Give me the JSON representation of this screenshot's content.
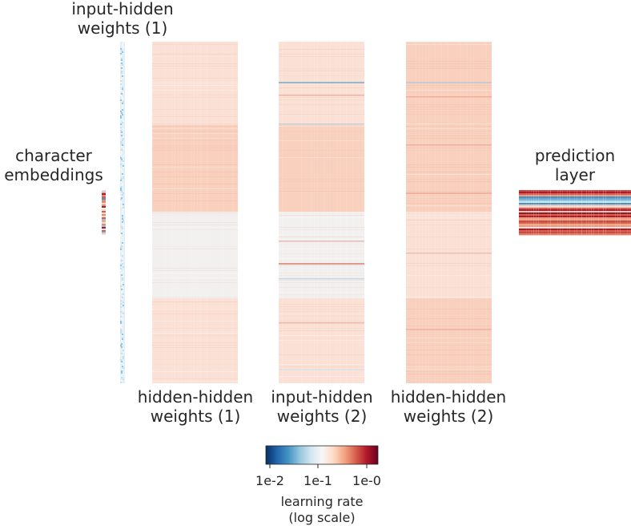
{
  "chart_data": {
    "type": "heatmap",
    "matrices": [
      {
        "id": "input-hidden-1",
        "label_lines": [
          "input-hidden",
          "weights (1)"
        ],
        "label_position": "top",
        "band_shades": [
          "light-blue",
          "light-blue",
          "light-blue"
        ]
      },
      {
        "id": "character-embeddings",
        "label_lines": [
          "character",
          "embeddings"
        ],
        "label_position": "top",
        "band_shades": [
          "mixed-red-blue"
        ]
      },
      {
        "id": "hidden-hidden-1",
        "label_lines": [
          "hidden-hidden",
          "weights (1)"
        ],
        "label_position": "bottom",
        "band_shades": [
          "light-red",
          "medium-red",
          "near-white",
          "light-red"
        ]
      },
      {
        "id": "input-hidden-2",
        "label_lines": [
          "input-hidden",
          "weights (2)"
        ],
        "label_position": "bottom",
        "band_shades": [
          "light-red",
          "medium-red",
          "near-white",
          "light-red"
        ]
      },
      {
        "id": "hidden-hidden-2",
        "label_lines": [
          "hidden-hidden",
          "weights (2)"
        ],
        "label_position": "bottom",
        "band_shades": [
          "medium-red",
          "medium-red",
          "light-red",
          "medium-red"
        ]
      },
      {
        "id": "prediction-layer",
        "label_lines": [
          "prediction",
          "layer"
        ],
        "label_position": "top",
        "band_shades": [
          "mixed-dark-red-blue"
        ]
      }
    ],
    "colorbar": {
      "colormap": "RdBu_r",
      "scale": "log",
      "range": [
        0.01,
        1.0
      ],
      "tick_values": [
        0.01,
        0.1,
        1.0
      ],
      "tick_labels": [
        "1e-2",
        "1e-1",
        "1e-0"
      ],
      "title_lines": [
        "learning rate",
        "(log scale)"
      ]
    }
  }
}
